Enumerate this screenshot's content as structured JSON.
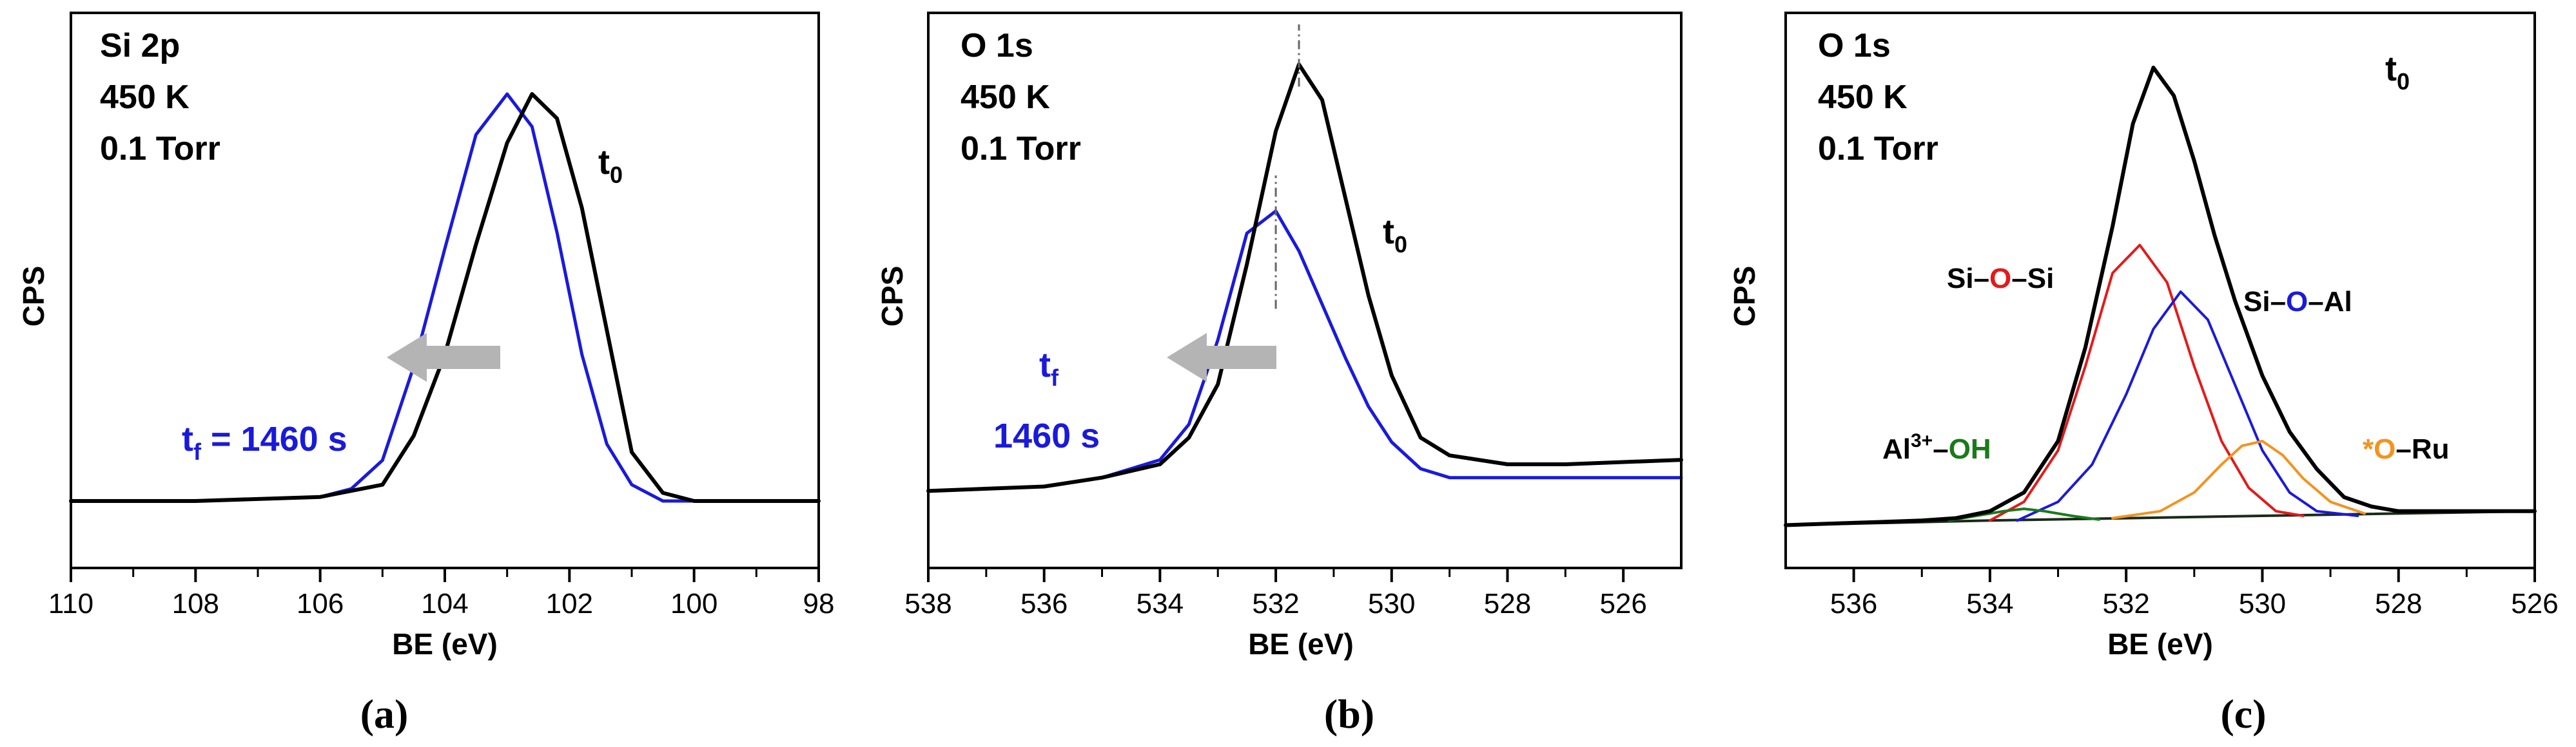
{
  "colors": {
    "black": "#000000",
    "blue": "#1a1adb",
    "red": "#e31a1a",
    "orange": "#f39320",
    "green": "#1a7a1a",
    "darkgreen": "#1a2a1a",
    "arrow": "#b4b4b4",
    "dashline": "#666666"
  },
  "chart_data": [
    {
      "type": "line",
      "panel_label": "(a)",
      "xlabel": "BE (eV)",
      "ylabel": "CPS",
      "xlim": [
        110,
        98
      ],
      "ylim": [
        0,
        1.05
      ],
      "x_ticks": [
        "110",
        "108",
        "106",
        "104",
        "102",
        "100",
        "98"
      ],
      "annotations": {
        "line1": "Si 2p",
        "line2": "450 K",
        "line3": "0.1 Torr"
      },
      "t0_label": {
        "t": "t",
        "sub": "0"
      },
      "tf_label": {
        "t": "t",
        "sub": "f",
        "rest": " = 1460 s"
      },
      "series": [
        {
          "name": "t0",
          "color": "black",
          "x": [
            110,
            108,
            106,
            105,
            104.5,
            104,
            103.5,
            103,
            102.6,
            102.2,
            101.8,
            101.4,
            101,
            100.5,
            100,
            98
          ],
          "y": [
            0.0,
            0.0,
            0.01,
            0.04,
            0.16,
            0.36,
            0.63,
            0.88,
            1.0,
            0.94,
            0.72,
            0.42,
            0.12,
            0.02,
            0.0,
            0.0
          ]
        },
        {
          "name": "tf = 1460 s",
          "color": "blue",
          "x": [
            110,
            108,
            106,
            105.5,
            105,
            104.5,
            104,
            103.5,
            103,
            102.6,
            102.2,
            101.8,
            101.4,
            101,
            100.5,
            98
          ],
          "y": [
            0.0,
            0.0,
            0.01,
            0.03,
            0.1,
            0.33,
            0.62,
            0.9,
            1.0,
            0.92,
            0.66,
            0.36,
            0.14,
            0.04,
            0.0,
            0.0
          ]
        }
      ]
    },
    {
      "type": "line",
      "panel_label": "(b)",
      "xlabel": "BE (eV)",
      "ylabel": "CPS",
      "xlim": [
        538,
        525
      ],
      "ylim": [
        0,
        1.05
      ],
      "x_ticks": [
        "538",
        "536",
        "534",
        "532",
        "530",
        "528",
        "526"
      ],
      "annotations": {
        "line1": "O 1s",
        "line2": "450 K",
        "line3": "0.1 Torr"
      },
      "t0_label": {
        "t": "t",
        "sub": "0"
      },
      "tf_label": {
        "t": "t",
        "sub": "f",
        "value": "1460 s"
      },
      "series": [
        {
          "name": "t0",
          "color": "black",
          "x": [
            538,
            536,
            535,
            534,
            533.5,
            533,
            532.5,
            532,
            531.6,
            531.2,
            530.8,
            530.4,
            530,
            529.5,
            529,
            528,
            527,
            525
          ],
          "y": [
            0.04,
            0.05,
            0.07,
            0.1,
            0.16,
            0.28,
            0.55,
            0.85,
            1.0,
            0.92,
            0.7,
            0.48,
            0.3,
            0.16,
            0.12,
            0.1,
            0.1,
            0.11
          ]
        },
        {
          "name": "tf",
          "color": "blue",
          "x": [
            538,
            536,
            535,
            534,
            533.5,
            533,
            532.5,
            532,
            531.6,
            531.2,
            530.8,
            530.4,
            530,
            529.5,
            529,
            528,
            525
          ],
          "y": [
            0.04,
            0.05,
            0.07,
            0.11,
            0.19,
            0.38,
            0.62,
            0.67,
            0.58,
            0.46,
            0.34,
            0.23,
            0.15,
            0.09,
            0.07,
            0.07,
            0.07
          ]
        }
      ],
      "markers": [
        {
          "x": 531.6,
          "y0": 0.95,
          "y1": 1.09,
          "label": "t0 peak"
        },
        {
          "x": 532.0,
          "y0": 0.45,
          "y1": 0.75,
          "label": "tf peak"
        }
      ]
    },
    {
      "type": "line",
      "panel_label": "(c)",
      "xlabel": "BE (eV)",
      "ylabel": "CPS",
      "xlim": [
        537,
        526
      ],
      "ylim": [
        0,
        1.05
      ],
      "x_ticks": [
        "536",
        "534",
        "532",
        "530",
        "528",
        "526"
      ],
      "annotations": {
        "line1": "O 1s",
        "line2": "450 K",
        "line3": "0.1 Torr"
      },
      "t0_label": {
        "t": "t",
        "sub": "0"
      },
      "component_labels": {
        "si_o_si": {
          "a": "Si–",
          "b": "O",
          "c": "–Si"
        },
        "si_o_al": {
          "a": "Si–",
          "b": "O",
          "c": "–Al"
        },
        "al_oh": {
          "a": "Al",
          "sup": "3+",
          "b": "–",
          "c": "OH"
        },
        "o_ru": {
          "a": "*O",
          "b": "–Ru"
        }
      },
      "baseline": {
        "x": [
          537,
          534,
          530,
          526
        ],
        "y": [
          0.02,
          0.03,
          0.04,
          0.05
        ]
      },
      "series": [
        {
          "name": "envelope t0",
          "color": "black",
          "x": [
            537,
            536,
            535,
            534.5,
            534,
            533.5,
            533,
            532.6,
            532.2,
            531.9,
            531.6,
            531.3,
            531,
            530.7,
            530.4,
            530,
            529.6,
            529.2,
            528.8,
            528.4,
            528,
            527,
            526
          ],
          "y": [
            0.02,
            0.025,
            0.03,
            0.035,
            0.05,
            0.09,
            0.2,
            0.4,
            0.66,
            0.88,
            1.0,
            0.94,
            0.8,
            0.64,
            0.5,
            0.34,
            0.22,
            0.14,
            0.08,
            0.06,
            0.05,
            0.05,
            0.05
          ]
        },
        {
          "name": "Si–O–Si",
          "color": "red",
          "x": [
            534,
            533.5,
            533,
            532.6,
            532.2,
            531.8,
            531.4,
            531,
            530.6,
            530.2,
            529.8,
            529.4
          ],
          "y": [
            0.03,
            0.07,
            0.18,
            0.36,
            0.56,
            0.62,
            0.54,
            0.36,
            0.2,
            0.1,
            0.05,
            0.04
          ]
        },
        {
          "name": "Si–O–Al",
          "color": "blue",
          "x": [
            533.6,
            533,
            532.5,
            532,
            531.6,
            531.2,
            530.8,
            530.4,
            530,
            529.6,
            529.2,
            528.6
          ],
          "y": [
            0.03,
            0.07,
            0.15,
            0.3,
            0.44,
            0.52,
            0.46,
            0.32,
            0.18,
            0.09,
            0.05,
            0.04
          ]
        },
        {
          "name": "*O–Ru",
          "color": "orange",
          "x": [
            532.2,
            531.5,
            531,
            530.6,
            530.3,
            530,
            529.7,
            529.4,
            529,
            528.5
          ],
          "y": [
            0.035,
            0.05,
            0.09,
            0.15,
            0.19,
            0.2,
            0.17,
            0.12,
            0.07,
            0.045
          ]
        },
        {
          "name": "Al3+–OH",
          "color": "green",
          "x": [
            534.6,
            534.2,
            533.8,
            533.5,
            533.2,
            532.8,
            532.4
          ],
          "y": [
            0.03,
            0.04,
            0.05,
            0.055,
            0.05,
            0.04,
            0.032
          ]
        }
      ]
    }
  ]
}
